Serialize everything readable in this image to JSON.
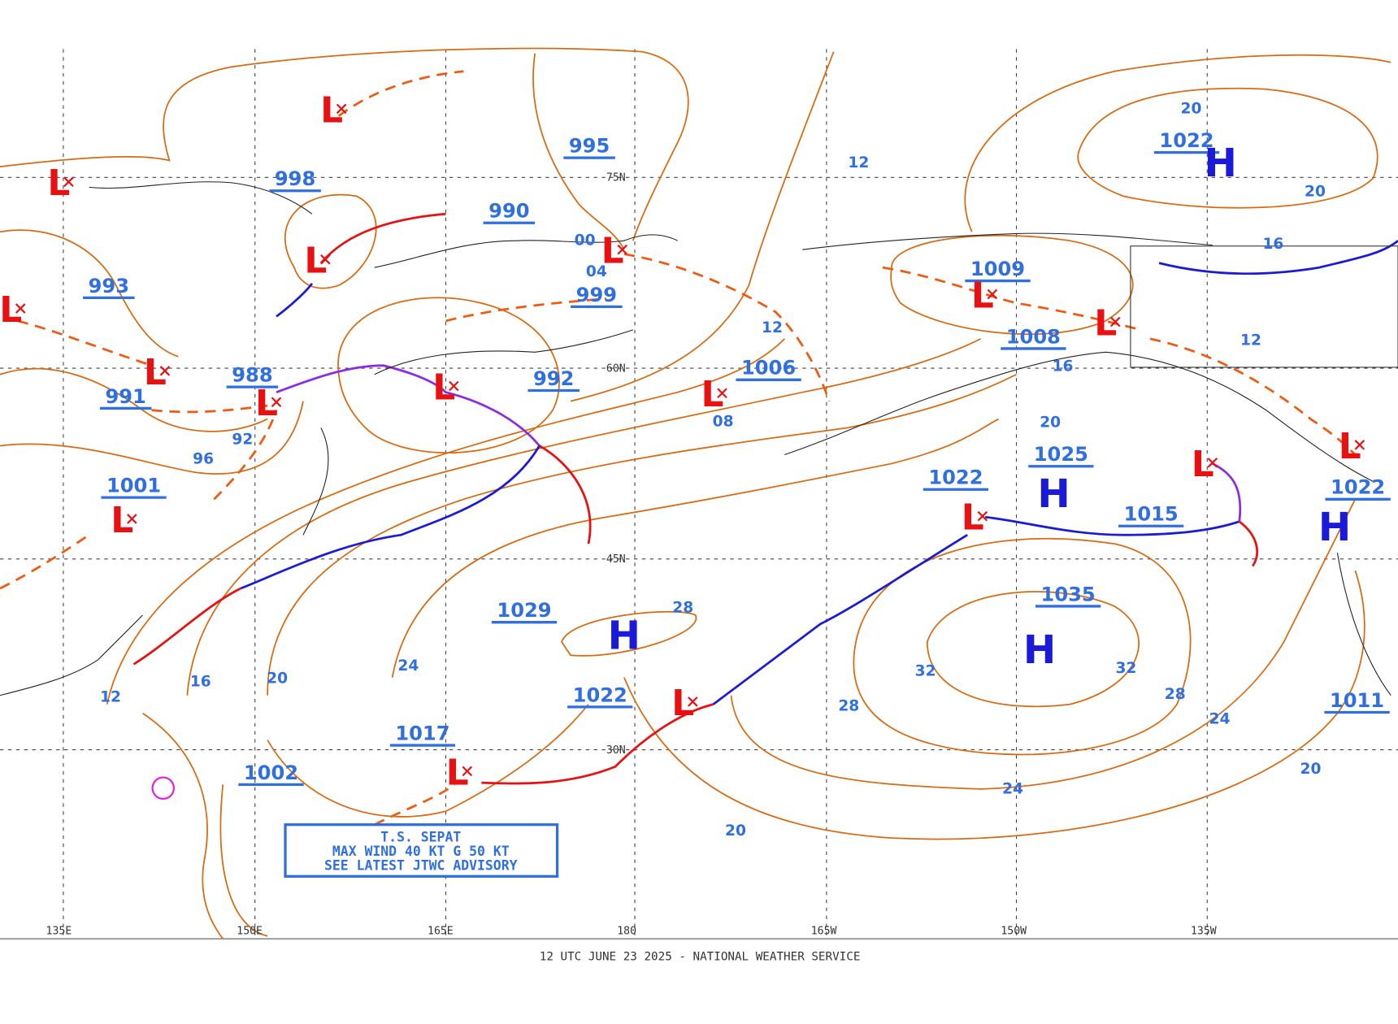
{
  "map": {
    "lat_labels": [
      "75N",
      "60N",
      "45N",
      "30N"
    ],
    "lon_labels": [
      "135E",
      "150E",
      "165E",
      "180",
      "165W",
      "150W",
      "135W"
    ],
    "pressure_labels": [
      "995",
      "998",
      "990",
      "993",
      "999",
      "988",
      "992",
      "991",
      "1006",
      "1009",
      "1008",
      "1001",
      "1025",
      "1022",
      "1015",
      "1022",
      "1029",
      "1035",
      "1022",
      "1017",
      "1002",
      "1022",
      "1011"
    ],
    "high_symbol": "H",
    "low_symbol": "L",
    "isobar_labels": [
      "12",
      "20",
      "20",
      "16",
      "12",
      "12",
      "08",
      "16",
      "20",
      "96",
      "92",
      "00",
      "04",
      "12",
      "16",
      "20",
      "24",
      "28",
      "32",
      "28",
      "32",
      "28",
      "24",
      "20",
      "24",
      "20"
    ],
    "advisory": [
      "T.S. SEPAT",
      "MAX WIND 40 KT G 50 KT",
      "SEE LATEST JTWC ADVISORY"
    ],
    "footer": "12 UTC JUNE 23 2025 - NATIONAL WEATHER SERVICE"
  }
}
